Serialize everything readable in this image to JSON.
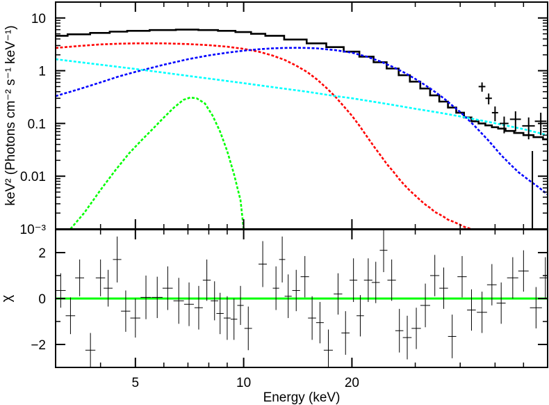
{
  "chart_data": [
    {
      "panel": "spectrum",
      "type": "line",
      "ylabel": "keV² (Photons cm⁻² s⁻¹ keV⁻¹)",
      "xlim": [
        3.0,
        70.0
      ],
      "ylim": [
        0.001,
        20
      ],
      "xscale": "log",
      "yscale": "log",
      "x_ticks": [
        5,
        10,
        20
      ],
      "y_ticks": [
        {
          "value": 10,
          "label": "10"
        },
        {
          "value": 1,
          "label": "1"
        },
        {
          "value": 0.1,
          "label": "0.1"
        },
        {
          "value": 0.01,
          "label": "0.01"
        },
        {
          "value": 0.001,
          "label": "10⁻³"
        }
      ],
      "series": [
        {
          "color": "#000000",
          "style": "step",
          "x": [
            3.0,
            3.5,
            4.0,
            4.5,
            5.0,
            6.0,
            7.0,
            8.0,
            9.0,
            10.0,
            11.0,
            12.0,
            14.0,
            16.0,
            18.0,
            20.0,
            22.0,
            24.0,
            26.0,
            28.0,
            30.0,
            32.0,
            34.0,
            36.0,
            38.0,
            40.0,
            42.0,
            44.0,
            46.0,
            48.0,
            50.0,
            52.0,
            55.0,
            58.0,
            62.0,
            66.0,
            70.0
          ],
          "values": [
            4.6,
            4.9,
            5.2,
            5.5,
            5.7,
            5.9,
            6.0,
            5.9,
            5.7,
            5.4,
            5.0,
            4.6,
            3.9,
            3.3,
            2.8,
            2.3,
            1.85,
            1.45,
            1.1,
            0.82,
            0.62,
            0.46,
            0.34,
            0.26,
            0.2,
            0.16,
            0.13,
            0.11,
            0.1,
            0.092,
            0.085,
            0.08,
            0.072,
            0.066,
            0.06,
            0.055,
            0.05
          ]
        },
        {
          "color": "#ff0000",
          "style": "dashed",
          "x": [
            3.0,
            3.5,
            4.0,
            4.5,
            5.0,
            6.0,
            7.0,
            8.0,
            9.0,
            10.0,
            11.0,
            12.0,
            13.0,
            14.0,
            15.0,
            16.0,
            17.0,
            18.0,
            19.0,
            20.0,
            21.0,
            22.0,
            23.0,
            24.0,
            25.0,
            26.0,
            27.0,
            28.0,
            29.0,
            30.0,
            31.0,
            32.0,
            33.0,
            34.0,
            35.0,
            36.0,
            37.0,
            38.0,
            39.0,
            40.0,
            41.0,
            42.0,
            43.0
          ],
          "values": [
            2.7,
            2.95,
            3.15,
            3.25,
            3.3,
            3.3,
            3.2,
            3.05,
            2.85,
            2.6,
            2.3,
            1.95,
            1.6,
            1.25,
            0.95,
            0.68,
            0.47,
            0.32,
            0.21,
            0.14,
            0.09,
            0.057,
            0.037,
            0.025,
            0.017,
            0.0125,
            0.009,
            0.0068,
            0.0053,
            0.0043,
            0.0035,
            0.0029,
            0.0025,
            0.0021,
            0.0019,
            0.0017,
            0.0015,
            0.0014,
            0.0013,
            0.0012,
            0.0011,
            0.00104,
            0.001
          ]
        },
        {
          "color": "#0000ff",
          "style": "dashed",
          "x": [
            3.0,
            3.5,
            4.0,
            4.5,
            5.0,
            6.0,
            7.0,
            8.0,
            9.0,
            10.0,
            11.0,
            12.0,
            13.0,
            14.0,
            15.0,
            16.0,
            18.0,
            20.0,
            22.0,
            24.0,
            26.0,
            28.0,
            30.0,
            32.0,
            34.0,
            36.0,
            38.0,
            40.0,
            42.0,
            44.0,
            46.0,
            48.0,
            50.0,
            52.0,
            55.0,
            58.0,
            62.0,
            66.0,
            70.0
          ],
          "values": [
            0.33,
            0.45,
            0.6,
            0.78,
            0.95,
            1.3,
            1.65,
            1.95,
            2.2,
            2.4,
            2.55,
            2.65,
            2.7,
            2.72,
            2.7,
            2.65,
            2.45,
            2.2,
            1.85,
            1.5,
            1.18,
            0.92,
            0.7,
            0.53,
            0.4,
            0.3,
            0.22,
            0.165,
            0.12,
            0.088,
            0.064,
            0.047,
            0.034,
            0.025,
            0.017,
            0.012,
            0.0085,
            0.0062,
            0.0045
          ]
        },
        {
          "color": "#00ffff",
          "style": "dashed",
          "x": [
            3.0,
            4.0,
            5.0,
            6.0,
            7.0,
            8.0,
            10.0,
            12.0,
            15.0,
            18.0,
            20.0,
            25.0,
            30.0,
            35.0,
            40.0,
            50.0,
            60.0,
            70.0
          ],
          "values": [
            1.65,
            1.3,
            1.08,
            0.92,
            0.8,
            0.71,
            0.58,
            0.49,
            0.4,
            0.33,
            0.3,
            0.235,
            0.19,
            0.16,
            0.136,
            0.101,
            0.078,
            0.06
          ]
        },
        {
          "color": "#00ff00",
          "style": "dashed",
          "x": [
            3.3,
            3.6,
            4.0,
            4.4,
            4.8,
            5.2,
            5.6,
            6.0,
            6.4,
            6.8,
            7.1,
            7.4,
            7.8,
            8.2,
            8.6,
            9.0,
            9.4,
            9.8,
            10.0
          ],
          "values": [
            0.001,
            0.002,
            0.0055,
            0.013,
            0.027,
            0.048,
            0.08,
            0.13,
            0.2,
            0.28,
            0.31,
            0.3,
            0.24,
            0.14,
            0.07,
            0.03,
            0.011,
            0.0035,
            0.001
          ]
        },
        {
          "color": "#000000",
          "style": "errorbars",
          "x": [
            46,
            48,
            50,
            53,
            57,
            62,
            67
          ],
          "values": [
            0.5,
            0.3,
            0.16,
            0.1,
            0.12,
            0.09,
            0.11
          ],
          "x_err": [
            1.0,
            1.0,
            1.0,
            1.5,
            2.0,
            2.5,
            2.5
          ],
          "y_err_low": [
            0.1,
            0.07,
            0.05,
            0.035,
            0.05,
            0.04,
            0.05
          ],
          "y_err_high": [
            0.1,
            0.07,
            0.05,
            0.035,
            0.05,
            0.04,
            0.05
          ]
        },
        {
          "color": "#000000",
          "style": "upper-limit",
          "x": [
            63.5
          ],
          "values": [
            0.03
          ]
        }
      ]
    },
    {
      "panel": "residuals",
      "type": "scatter",
      "xlabel": "Energy (keV)",
      "ylabel": "χ",
      "xlim": [
        3.0,
        70.0
      ],
      "ylim": [
        -3.0,
        3.0
      ],
      "xscale": "log",
      "x_ticks": [
        5,
        10,
        20
      ],
      "y_ticks": [
        {
          "value": 2,
          "label": "2"
        },
        {
          "value": 0,
          "label": "0"
        },
        {
          "value": -2,
          "label": "−2"
        }
      ],
      "zero_line_color": "#00ff00",
      "series": [
        {
          "color": "#000000",
          "style": "errorbars",
          "x": [
            3.1,
            3.3,
            3.5,
            3.75,
            4.0,
            4.2,
            4.45,
            4.7,
            5.0,
            5.35,
            5.75,
            6.15,
            6.6,
            7.05,
            7.5,
            7.9,
            8.3,
            8.6,
            9.0,
            9.4,
            9.8,
            10.3,
            11.3,
            12.3,
            12.8,
            13.3,
            14.0,
            14.8,
            15.5,
            16.3,
            17.2,
            18.3,
            19.2,
            20.2,
            21.1,
            22.2,
            23.3,
            24.5,
            25.8,
            27.1,
            28.5,
            30.2,
            32.0,
            34.0,
            36.0,
            38.0,
            40.5,
            43.0,
            46.0,
            49.0,
            52.0,
            56.0,
            60.0,
            65.0,
            69.0
          ],
          "values": [
            0.35,
            -0.75,
            0.9,
            -2.25,
            0.9,
            0.45,
            1.7,
            -0.55,
            -0.85,
            0.05,
            0.05,
            0.45,
            -0.1,
            -0.25,
            -0.4,
            0.8,
            -0.1,
            -0.65,
            -0.85,
            -0.9,
            -0.3,
            -1.3,
            1.5,
            0.45,
            1.7,
            0.1,
            0.35,
            0.95,
            -0.85,
            -1.05,
            -2.25,
            0.2,
            -1.5,
            0.8,
            -0.75,
            0.8,
            0.7,
            2.1,
            0.8,
            -1.4,
            -1.7,
            -1.3,
            -0.3,
            1.0,
            0.45,
            -1.65,
            0.95,
            -0.5,
            -0.6,
            0.6,
            -0.2,
            0.9,
            1.2,
            -0.4,
            0.9
          ],
          "x_err": [
            0.1,
            0.1,
            0.1,
            0.12,
            0.12,
            0.12,
            0.12,
            0.14,
            0.16,
            0.18,
            0.2,
            0.2,
            0.22,
            0.22,
            0.2,
            0.2,
            0.2,
            0.2,
            0.2,
            0.2,
            0.2,
            0.25,
            0.3,
            0.25,
            0.25,
            0.3,
            0.35,
            0.4,
            0.4,
            0.4,
            0.5,
            0.5,
            0.5,
            0.5,
            0.5,
            0.6,
            0.6,
            0.6,
            0.7,
            0.7,
            0.8,
            0.9,
            1.0,
            1.0,
            1.0,
            1.0,
            1.2,
            1.2,
            1.5,
            1.5,
            1.5,
            2.0,
            2.0,
            2.5,
            2.5
          ],
          "y_err": [
            0.75,
            0.8,
            0.8,
            0.75,
            0.8,
            0.8,
            1.0,
            0.9,
            0.85,
            0.95,
            0.9,
            0.95,
            1.0,
            0.95,
            0.95,
            0.9,
            0.85,
            0.9,
            0.95,
            0.9,
            0.85,
            0.95,
            1.0,
            0.95,
            1.0,
            0.95,
            0.9,
            0.9,
            0.95,
            0.9,
            0.9,
            0.9,
            0.95,
            0.95,
            0.9,
            0.95,
            0.9,
            0.95,
            0.9,
            0.95,
            0.95,
            0.9,
            0.95,
            0.9,
            0.9,
            0.95,
            0.9,
            0.9,
            0.9,
            0.9,
            0.9,
            0.9,
            0.9,
            0.9,
            0.9
          ]
        }
      ]
    }
  ]
}
